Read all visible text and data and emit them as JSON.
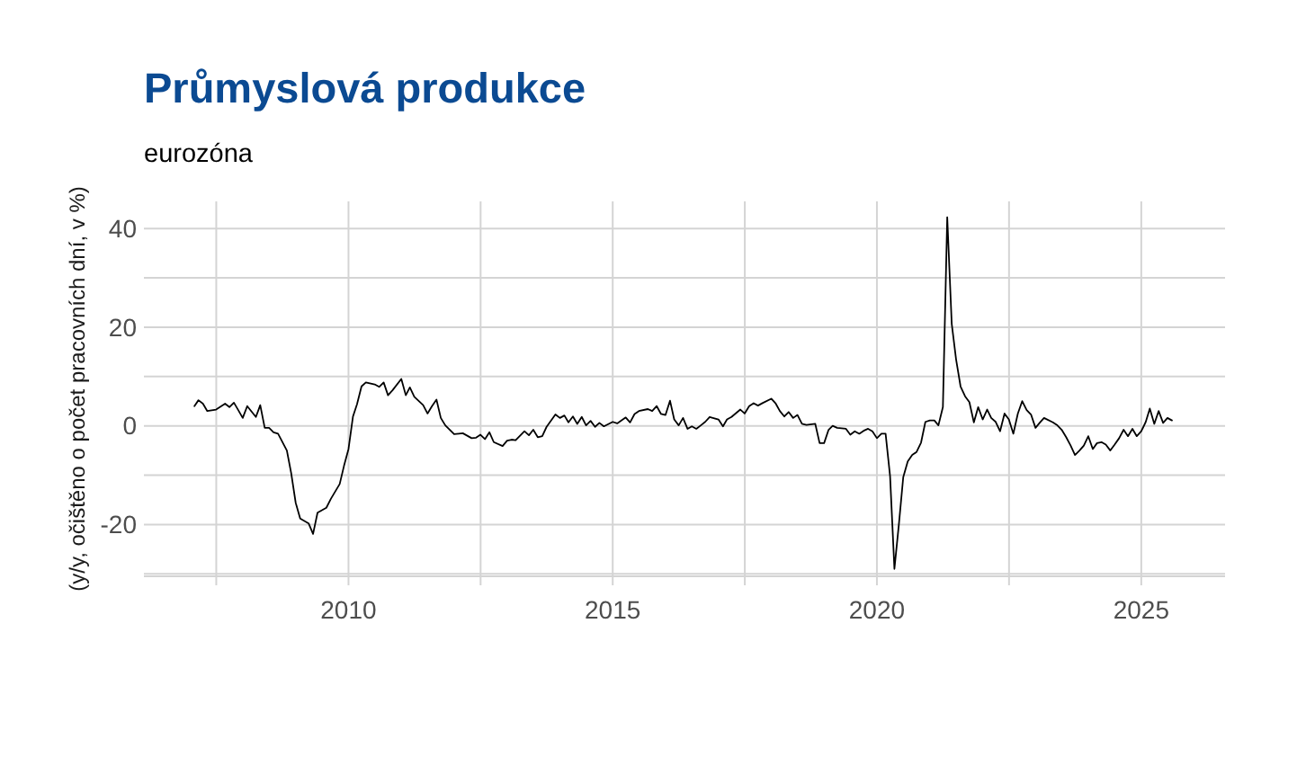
{
  "chart_data": {
    "type": "line",
    "title": "Průmyslová produkce",
    "subtitle": "eurozóna",
    "ylabel": "(y/y, očištěno o počet pracovních dní, v %)",
    "color": "#000000",
    "x": [
      "2007-02",
      "2007-03",
      "2007-04",
      "2007-05",
      "2007-07",
      "2007-09",
      "2007-10",
      "2007-11",
      "2007-12",
      "2008-01",
      "2008-02",
      "2008-04",
      "2008-05",
      "2008-06",
      "2008-07",
      "2008-08",
      "2008-09",
      "2008-11",
      "2008-12",
      "2009-01",
      "2009-02",
      "2009-04",
      "2009-05",
      "2009-06",
      "2009-08",
      "2009-09",
      "2009-11",
      "2009-12",
      "2010-01",
      "2010-02",
      "2010-03",
      "2010-04",
      "2010-05",
      "2010-07",
      "2010-08",
      "2010-09",
      "2010-10",
      "2010-11",
      "2011-01",
      "2011-02",
      "2011-03",
      "2011-04",
      "2011-06",
      "2011-07",
      "2011-08",
      "2011-09",
      "2011-10",
      "2011-11",
      "2012-01",
      "2012-03",
      "2012-05",
      "2012-06",
      "2012-07",
      "2012-08",
      "2012-09",
      "2012-10",
      "2012-12",
      "2013-01",
      "2013-02",
      "2013-03",
      "2013-05",
      "2013-06",
      "2013-07",
      "2013-08",
      "2013-09",
      "2013-10",
      "2013-12",
      "2014-01",
      "2014-02",
      "2014-03",
      "2014-04",
      "2014-05",
      "2014-06",
      "2014-07",
      "2014-08",
      "2014-09",
      "2014-10",
      "2014-11",
      "2015-01",
      "2015-02",
      "2015-04",
      "2015-05",
      "2015-06",
      "2015-07",
      "2015-09",
      "2015-10",
      "2015-11",
      "2015-12",
      "2016-01",
      "2016-02",
      "2016-03",
      "2016-04",
      "2016-05",
      "2016-06",
      "2016-07",
      "2016-08",
      "2016-09",
      "2016-10",
      "2016-11",
      "2017-01",
      "2017-02",
      "2017-03",
      "2017-04",
      "2017-06",
      "2017-07",
      "2017-08",
      "2017-09",
      "2017-10",
      "2017-11",
      "2018-01",
      "2018-02",
      "2018-03",
      "2018-04",
      "2018-05",
      "2018-06",
      "2018-07",
      "2018-08",
      "2018-09",
      "2018-11",
      "2018-12",
      "2019-01",
      "2019-02",
      "2019-03",
      "2019-04",
      "2019-06",
      "2019-07",
      "2019-08",
      "2019-09",
      "2019-10",
      "2019-11",
      "2019-12",
      "2020-01",
      "2020-02",
      "2020-03",
      "2020-04",
      "2020-05",
      "2020-06",
      "2020-07",
      "2020-08",
      "2020-09",
      "2020-10",
      "2020-11",
      "2020-12",
      "2021-01",
      "2021-02",
      "2021-03",
      "2021-04",
      "2021-05",
      "2021-06",
      "2021-07",
      "2021-08",
      "2021-09",
      "2021-10",
      "2021-11",
      "2021-12",
      "2022-01",
      "2022-02",
      "2022-03",
      "2022-04",
      "2022-05",
      "2022-06",
      "2022-07",
      "2022-08",
      "2022-09",
      "2022-10",
      "2022-11",
      "2022-12",
      "2023-01",
      "2023-02",
      "2023-03",
      "2023-05",
      "2023-06",
      "2023-07",
      "2023-08",
      "2023-09",
      "2023-10",
      "2023-11",
      "2023-12",
      "2024-01",
      "2024-02",
      "2024-03",
      "2024-04",
      "2024-05",
      "2024-06",
      "2024-07",
      "2024-08",
      "2024-09",
      "2024-10",
      "2024-11",
      "2024-12",
      "2025-01",
      "2025-02",
      "2025-03",
      "2025-04",
      "2025-05",
      "2025-06",
      "2025-07",
      "2025-08"
    ],
    "values": [
      4.0,
      5.2,
      4.5,
      3.0,
      3.3,
      4.5,
      3.8,
      4.7,
      3.2,
      1.6,
      4.0,
      1.8,
      4.2,
      -0.4,
      -0.4,
      -1.3,
      -1.6,
      -5.0,
      -9.6,
      -15.6,
      -18.8,
      -19.8,
      -21.9,
      -17.6,
      -16.6,
      -14.8,
      -11.8,
      -8.1,
      -4.7,
      1.9,
      4.4,
      8.0,
      8.8,
      8.4,
      7.9,
      8.8,
      6.2,
      7.2,
      9.5,
      6.2,
      7.8,
      5.9,
      4.2,
      2.5,
      4.0,
      5.3,
      1.6,
      0.1,
      -1.7,
      -1.5,
      -2.5,
      -2.4,
      -1.8,
      -2.7,
      -1.3,
      -3.3,
      -4.1,
      -3.0,
      -2.8,
      -2.9,
      -1.1,
      -1.9,
      -0.8,
      -2.3,
      -2.1,
      -0.2,
      2.3,
      1.6,
      2.1,
      0.7,
      1.9,
      0.4,
      1.8,
      0.1,
      1.0,
      -0.2,
      0.6,
      -0.1,
      0.8,
      0.5,
      1.7,
      0.7,
      2.4,
      3.0,
      3.4,
      3.0,
      4.0,
      2.4,
      2.2,
      5.1,
      1.3,
      0.1,
      1.6,
      -0.6,
      -0.1,
      -0.6,
      0.1,
      0.8,
      1.8,
      1.3,
      -0.1,
      1.3,
      1.8,
      3.3,
      2.5,
      4.0,
      4.6,
      4.1,
      4.6,
      5.5,
      4.5,
      3.0,
      1.9,
      2.8,
      1.6,
      2.2,
      0.4,
      0.2,
      0.4,
      -3.5,
      -3.5,
      -0.8,
      0.0,
      -0.4,
      -0.6,
      -1.8,
      -1.1,
      -1.6,
      -1.0,
      -0.6,
      -1.1,
      -2.5,
      -1.6,
      -1.6,
      -10.2,
      -29.0,
      -19.9,
      -10.4,
      -7.2,
      -5.9,
      -5.3,
      -3.4,
      0.8,
      1.1,
      1.1,
      0.1,
      3.8,
      42.3,
      20.7,
      13.5,
      8.0,
      6.0,
      4.8,
      0.7,
      3.8,
      1.3,
      3.3,
      1.6,
      0.8,
      -1.1,
      2.5,
      1.3,
      -1.6,
      2.5,
      5.0,
      3.2,
      2.3,
      -0.4,
      0.7,
      1.6,
      0.7,
      0.1,
      -0.8,
      -2.3,
      -4.0,
      -5.9,
      -5.0,
      -4.0,
      -2.1,
      -4.7,
      -3.5,
      -3.3,
      -3.8,
      -5.0,
      -3.8,
      -2.5,
      -0.8,
      -2.1,
      -0.6,
      -2.1,
      -1.1,
      0.8,
      3.5,
      0.4,
      3.0,
      0.6,
      1.6,
      1.1
    ],
    "xlim": [
      "2006-02-17",
      "2026-08-03"
    ],
    "xticks": [
      {
        "value": "2007-07-02",
        "label": null
      },
      "2010",
      {
        "value": "2012-07-02",
        "label": null
      },
      "2015",
      {
        "value": "2017-07-02",
        "label": null
      },
      "2020",
      {
        "value": "2022-07-02",
        "label": null
      },
      "2025"
    ],
    "ylim": [
      -30.5,
      45.5
    ],
    "yticks": [
      {
        "value": -30,
        "label": null
      },
      -20,
      {
        "value": -10,
        "label": null
      },
      0,
      {
        "value": 10,
        "label": null
      },
      20,
      {
        "value": 30,
        "label": null
      },
      40
    ],
    "grid": true
  }
}
